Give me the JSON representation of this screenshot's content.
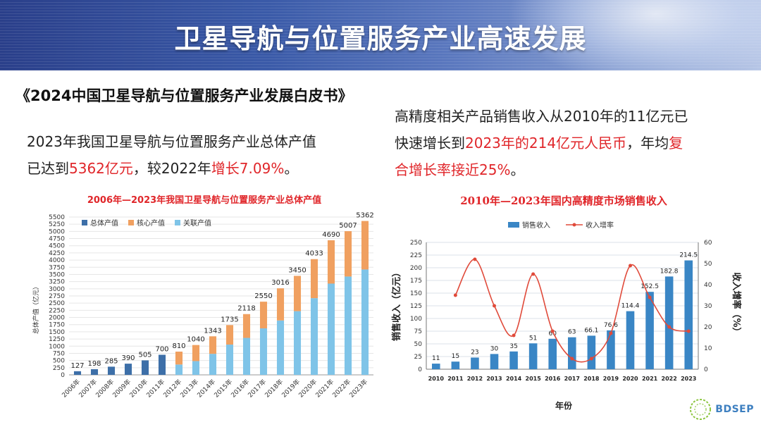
{
  "header": {
    "title": "卫星导航与位置服务产业高速发展"
  },
  "book_title": "《2024中国卫星导航与位置服务产业发展白皮书》",
  "para1": {
    "l1": "2023年我国卫星导航与位置服务产业总体产值",
    "l2a": "已达到",
    "l2b": "5362亿元",
    "l2c": "，较2022年",
    "l2d": "增长7.09%",
    "l2e": "。"
  },
  "para2": {
    "l1": "高精度相关产品销售收入从2010年的11亿元已",
    "l2a": "快速增长到",
    "l2b": "2023年的214亿元人民币",
    "l2c": "，年均",
    "l2d": "复",
    "l3": "合增长率接近25%",
    "l3e": "。"
  },
  "logo": {
    "text": "BDSEP"
  },
  "colors": {
    "total": "#3d6fa8",
    "core": "#f0a060",
    "related": "#7fc4e8",
    "bar2": "#3a86c5",
    "line2": "#e04a3a",
    "title_red": "#e0262a"
  },
  "chart_data": [
    {
      "type": "bar",
      "title": "2006年—2023年我国卫星导航与位置服务产业总体产值",
      "ylabel": "总体产值（亿元）",
      "ylim": [
        0,
        5500
      ],
      "yticks": [
        "0",
        "250",
        "500",
        "750",
        "1000",
        "1250",
        "1500",
        "1750",
        "2000",
        "2250",
        "2500",
        "2750",
        "3000",
        "3250",
        "3500",
        "3750",
        "4000",
        "4250",
        "4500",
        "4750",
        "5000",
        "5250",
        "5500"
      ],
      "legend": [
        "总体产值",
        "核心产值",
        "关联产值"
      ],
      "categories": [
        "2006年",
        "2007年",
        "2008年",
        "2009年",
        "2010年",
        "2011年",
        "2012年",
        "2013年",
        "2014年",
        "2015年",
        "2016年",
        "2017年",
        "2018年",
        "2019年",
        "2020年",
        "2021年",
        "2022年",
        "2023年"
      ],
      "totals": [
        127,
        198,
        285,
        390,
        505,
        700,
        810,
        1040,
        1343,
        1735,
        2118,
        2550,
        3016,
        3450,
        4033,
        4690,
        5007,
        5362
      ],
      "total_labels": [
        "127",
        "198",
        "285",
        "390",
        "505",
        "700",
        "810",
        "1040",
        "1343",
        "1735",
        "2118",
        "2550",
        "3016",
        "3450",
        "4033",
        "4690",
        "5007",
        "5362"
      ],
      "core": [
        null,
        null,
        null,
        null,
        null,
        null,
        450,
        560,
        610,
        680,
        830,
        930,
        1120,
        1230,
        1360,
        1510,
        1580,
        1690
      ],
      "related": [
        null,
        null,
        null,
        null,
        null,
        null,
        360,
        480,
        733,
        1055,
        1288,
        1620,
        1896,
        2220,
        2673,
        3180,
        3427,
        3672
      ]
    },
    {
      "type": "bar+line",
      "title": "2010年—2023年国内高精度市场销售收入",
      "legend": [
        "销售收入",
        "收入增率"
      ],
      "xlabel": "年份",
      "ylabel_left": "销售收入（亿元）",
      "ylabel_right": "收入增率（%）",
      "ylim_left": [
        0,
        250
      ],
      "ylim_right": [
        0,
        60
      ],
      "yticks_left": [
        "0",
        "25",
        "50",
        "75",
        "100",
        "125",
        "150",
        "175",
        "200",
        "225",
        "250"
      ],
      "yticks_right": [
        "0",
        "10",
        "20",
        "30",
        "40",
        "50",
        "60"
      ],
      "categories": [
        "2010",
        "2011",
        "2012",
        "2013",
        "2014",
        "2015",
        "2016",
        "2017",
        "2018",
        "2019",
        "2020",
        "2021",
        "2022",
        "2023"
      ],
      "values": [
        11,
        15,
        23,
        30,
        35,
        51,
        60,
        63,
        66.1,
        76.6,
        114.4,
        152.5,
        182.8,
        214.5
      ],
      "value_labels": [
        "11",
        "15",
        "23",
        "30",
        "35",
        "51",
        "60",
        "63",
        "66.1",
        "76.6",
        "114.4",
        "152.5",
        "182.8",
        "214.5"
      ],
      "growth_rate": [
        null,
        35,
        52,
        30,
        16,
        45,
        18,
        5,
        5,
        17,
        49,
        34,
        20,
        18
      ]
    }
  ]
}
